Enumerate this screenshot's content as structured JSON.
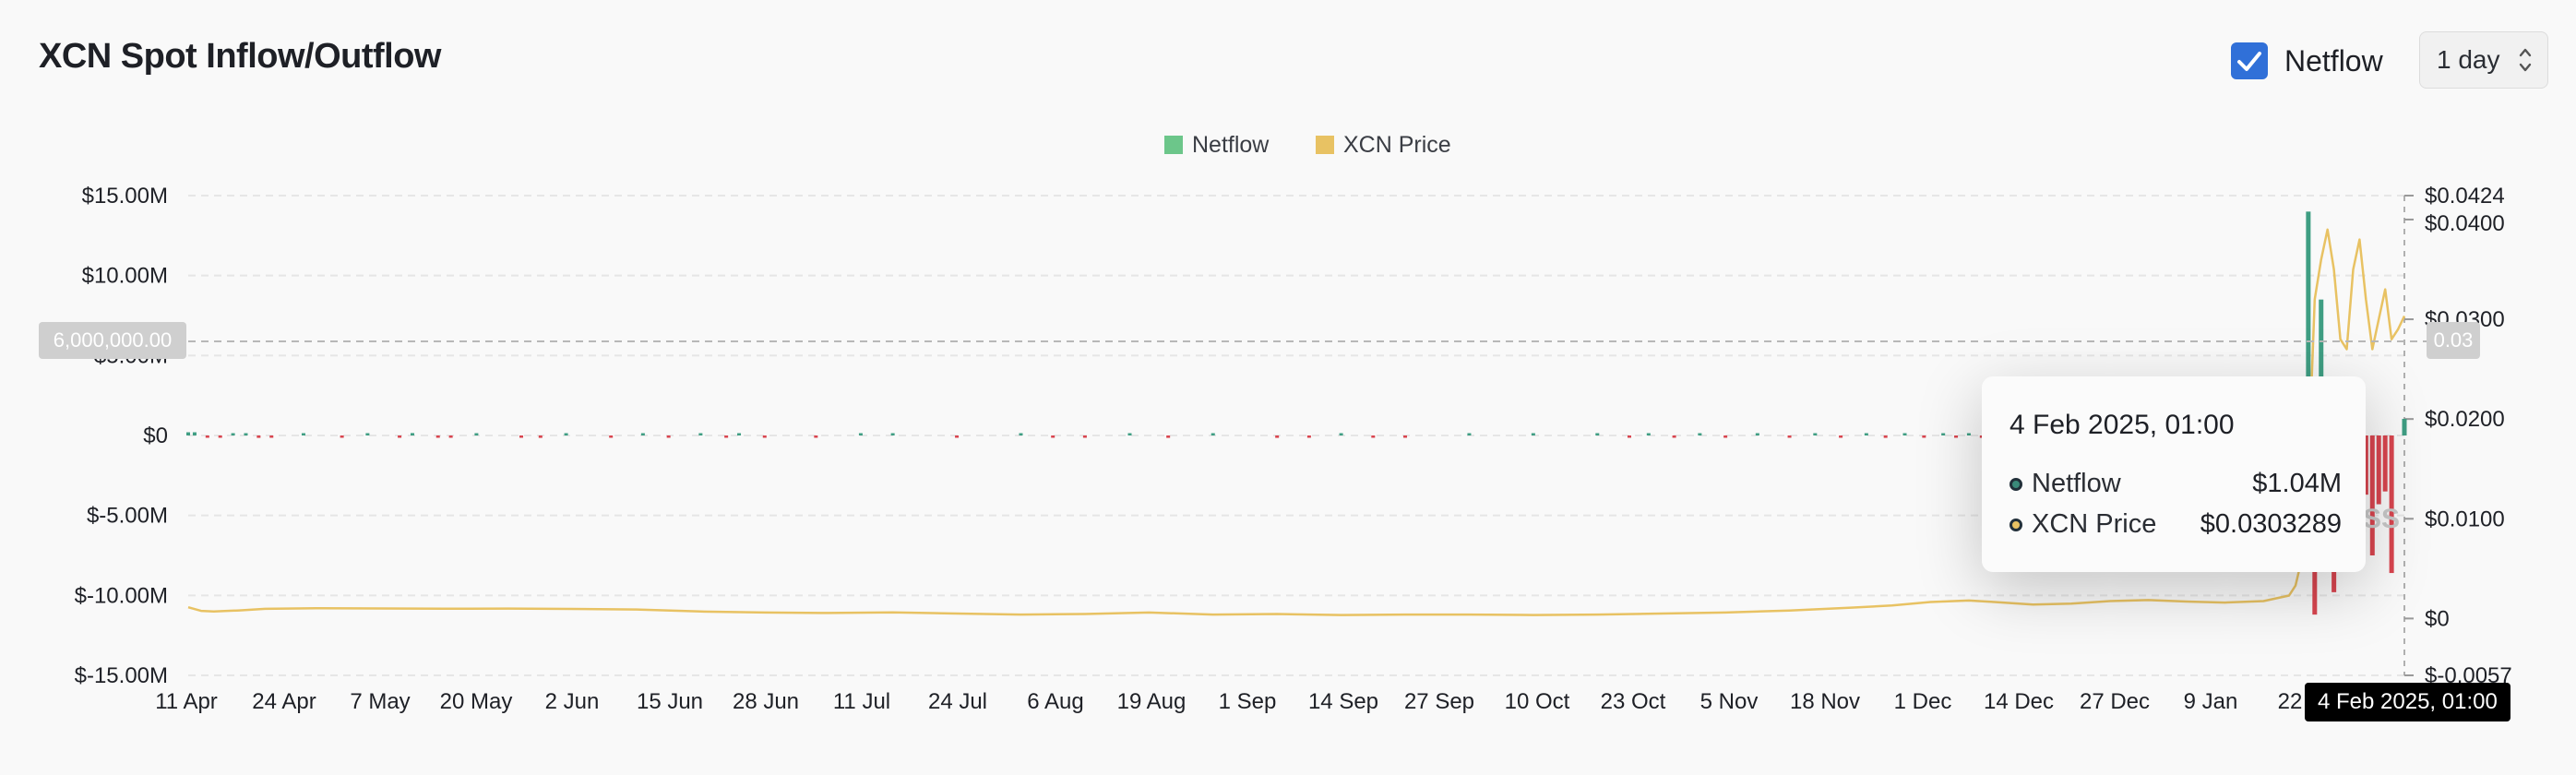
{
  "title": "XCN Spot Inflow/Outflow",
  "controls": {
    "netflow_checked": true,
    "netflow_label": "Netflow",
    "interval": "1 day"
  },
  "legend": [
    {
      "name": "Netflow",
      "color": "#6cc68a"
    },
    {
      "name": "XCN Price",
      "color": "#e8c263"
    }
  ],
  "crosshair": {
    "left_value": "6,000,000.00",
    "right_value": "0.03",
    "x_label": "4 Feb 2025, 01:00"
  },
  "tooltip": {
    "date": "4 Feb 2025, 01:00",
    "rows": [
      {
        "label": "Netflow",
        "value": "$1.04M",
        "color": "#3a8a7a"
      },
      {
        "label": "XCN Price",
        "value": "$0.0303289",
        "color": "#e8c263"
      }
    ]
  },
  "watermark": "SS",
  "chart_data": {
    "type": "bar+line",
    "x_ticks": [
      "11 Apr",
      "24 Apr",
      "7 May",
      "20 May",
      "2 Jun",
      "15 Jun",
      "28 Jun",
      "11 Jul",
      "24 Jul",
      "6 Aug",
      "19 Aug",
      "1 Sep",
      "14 Sep",
      "27 Sep",
      "10 Oct",
      "23 Oct",
      "5 Nov",
      "18 Nov",
      "1 Dec",
      "14 Dec",
      "27 Dec",
      "9 Jan",
      "22"
    ],
    "y_left_ticks": [
      "$15.00M",
      "$10.00M",
      "$5.00M",
      "$0",
      "$-5.00M",
      "$-10.00M",
      "$-15.00M"
    ],
    "y_left_values": [
      15,
      10,
      5,
      0,
      -5,
      -10,
      -15
    ],
    "y_left_range": [
      -15,
      15
    ],
    "y_right_ticks": [
      "$0.0424",
      "$0.0400",
      "$0.0300",
      "$0.0200",
      "$0.0100",
      "$0",
      "$-0.0057"
    ],
    "y_right_values": [
      0.0424,
      0.04,
      0.03,
      0.02,
      0.01,
      0,
      -0.0057
    ],
    "y_right_range": [
      -0.0057,
      0.0424
    ],
    "series": [
      {
        "name": "Netflow",
        "type": "bar",
        "unit": "$M",
        "points": [
          [
            0,
            0.2
          ],
          [
            1,
            0.2
          ],
          [
            3,
            -0.1
          ],
          [
            5,
            -0.1
          ],
          [
            7,
            0.1
          ],
          [
            9,
            0.1
          ],
          [
            11,
            -0.15
          ],
          [
            13,
            -0.1
          ],
          [
            18,
            0.1
          ],
          [
            24,
            -0.1
          ],
          [
            28,
            0.1
          ],
          [
            33,
            -0.1
          ],
          [
            35,
            0.15
          ],
          [
            39,
            -0.1
          ],
          [
            41,
            -0.1
          ],
          [
            45,
            0.1
          ],
          [
            52,
            -0.1
          ],
          [
            55,
            -0.15
          ],
          [
            59,
            0.1
          ],
          [
            66,
            -0.1
          ],
          [
            71,
            0.1
          ],
          [
            75,
            -0.1
          ],
          [
            80,
            0.1
          ],
          [
            84,
            -0.1
          ],
          [
            86,
            0.1
          ],
          [
            90,
            -0.1
          ],
          [
            98,
            -0.1
          ],
          [
            105,
            0.1
          ],
          [
            110,
            0.05
          ],
          [
            120,
            -0.05
          ],
          [
            130,
            0.1
          ],
          [
            135,
            -0.05
          ],
          [
            140,
            -0.1
          ],
          [
            147,
            0.1
          ],
          [
            153,
            -0.15
          ],
          [
            160,
            0.1
          ],
          [
            170,
            -0.15
          ],
          [
            175,
            -0.1
          ],
          [
            180,
            0.1
          ],
          [
            185,
            -0.1
          ],
          [
            190,
            -0.05
          ],
          [
            200,
            0.05
          ],
          [
            210,
            0.1
          ],
          [
            220,
            0.05
          ],
          [
            225,
            -0.05
          ],
          [
            228,
            0.1
          ],
          [
            232,
            -0.1
          ],
          [
            236,
            0.05
          ],
          [
            240,
            -0.1
          ],
          [
            245,
            0.05
          ],
          [
            250,
            -0.1
          ],
          [
            254,
            0.05
          ],
          [
            258,
            -0.1
          ],
          [
            262,
            0.1
          ],
          [
            265,
            -0.15
          ],
          [
            268,
            0.05
          ],
          [
            271,
            -0.1
          ],
          [
            274,
            0.1
          ],
          [
            276,
            -0.1
          ],
          [
            278,
            0.1
          ],
          [
            280,
            -0.15
          ],
          [
            282,
            -0.2
          ],
          [
            284,
            0.1
          ],
          [
            286,
            -0.15
          ],
          [
            288,
            -0.1
          ],
          [
            290,
            -0.2
          ],
          [
            292,
            -0.15
          ],
          [
            294,
            -0.1
          ],
          [
            296,
            -0.2
          ],
          [
            298,
            0.1
          ],
          [
            300,
            -0.1
          ],
          [
            302,
            -0.2
          ],
          [
            304,
            -0.15
          ],
          [
            306,
            0.9
          ],
          [
            308,
            -0.3
          ],
          [
            310,
            -0.2
          ],
          [
            312,
            -0.3
          ],
          [
            314,
            0.5
          ],
          [
            316,
            -0.2
          ],
          [
            318,
            -0.1
          ],
          [
            320,
            0.3
          ],
          [
            322,
            -0.2
          ],
          [
            324,
            0.2
          ],
          [
            326,
            -0.5
          ],
          [
            328,
            0.2
          ],
          [
            331,
            14.0
          ],
          [
            332,
            -11.2
          ],
          [
            333,
            8.5
          ],
          [
            334,
            -3.2
          ],
          [
            335,
            -9.8
          ],
          [
            337,
            -3.1
          ],
          [
            339,
            -4.7
          ],
          [
            340,
            -3.7
          ],
          [
            341,
            -7.5
          ],
          [
            342,
            -4.3
          ],
          [
            343,
            -3.5
          ],
          [
            344,
            -8.6
          ],
          [
            346,
            1.04
          ]
        ]
      },
      {
        "name": "XCN Price",
        "type": "line",
        "unit": "$",
        "points": [
          [
            0,
            0.00113
          ],
          [
            2,
            0.00077
          ],
          [
            4,
            0.0007
          ],
          [
            8,
            0.00081
          ],
          [
            12,
            0.00097
          ],
          [
            20,
            0.00103
          ],
          [
            30,
            0.00101
          ],
          [
            40,
            0.00098
          ],
          [
            50,
            0.001
          ],
          [
            60,
            0.00096
          ],
          [
            70,
            0.0009
          ],
          [
            80,
            0.0007
          ],
          [
            90,
            0.0006
          ],
          [
            100,
            0.00055
          ],
          [
            110,
            0.00062
          ],
          [
            120,
            0.0005
          ],
          [
            130,
            0.0004
          ],
          [
            140,
            0.00045
          ],
          [
            150,
            0.0006
          ],
          [
            160,
            0.0004
          ],
          [
            170,
            0.00045
          ],
          [
            180,
            0.00035
          ],
          [
            190,
            0.0004
          ],
          [
            200,
            0.0004
          ],
          [
            210,
            0.00035
          ],
          [
            220,
            0.0004
          ],
          [
            230,
            0.0005
          ],
          [
            240,
            0.0006
          ],
          [
            250,
            0.0008
          ],
          [
            260,
            0.0011
          ],
          [
            266,
            0.0013
          ],
          [
            272,
            0.00165
          ],
          [
            278,
            0.0018
          ],
          [
            282,
            0.00165
          ],
          [
            288,
            0.0014
          ],
          [
            294,
            0.0015
          ],
          [
            300,
            0.00175
          ],
          [
            306,
            0.00185
          ],
          [
            312,
            0.0017
          ],
          [
            318,
            0.0016
          ],
          [
            324,
            0.00175
          ],
          [
            328,
            0.0023
          ],
          [
            329,
            0.0033
          ],
          [
            330,
            0.006
          ],
          [
            331,
            0.015
          ],
          [
            332,
            0.032
          ],
          [
            333,
            0.036
          ],
          [
            334,
            0.039
          ],
          [
            335,
            0.035
          ],
          [
            336,
            0.028
          ],
          [
            337,
            0.027
          ],
          [
            338,
            0.035
          ],
          [
            339,
            0.038
          ],
          [
            340,
            0.032
          ],
          [
            341,
            0.027
          ],
          [
            342,
            0.03
          ],
          [
            343,
            0.033
          ],
          [
            344,
            0.028
          ],
          [
            345,
            0.029
          ],
          [
            346,
            0.03033
          ]
        ]
      }
    ]
  }
}
